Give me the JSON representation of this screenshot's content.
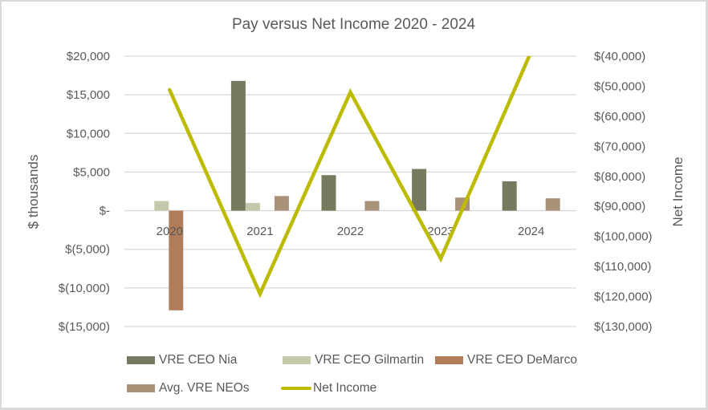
{
  "chart_data": {
    "type": "bar",
    "combo": "bar + line (secondary axis)",
    "title": "Pay versus Net Income 2020 - 2024",
    "xlabel": "",
    "ylabel": "$ thousands",
    "y2label": "Net Income",
    "categories": [
      "2020",
      "2021",
      "2022",
      "2023",
      "2024"
    ],
    "ylim": [
      -15000,
      20000
    ],
    "y2lim": [
      -130000,
      -40000
    ],
    "y_ticks": [
      "$20,000",
      "$15,000",
      "$10,000",
      "$5,000",
      "$-",
      "$(5,000)",
      "$(10,000)",
      "$(15,000)"
    ],
    "y2_ticks": [
      "$(40,000)",
      "$(50,000)",
      "$(60,000)",
      "$(70,000)",
      "$(80,000)",
      "$(90,000)",
      "$(100,000)",
      "$(110,000)",
      "$(120,000)",
      "$(130,000)"
    ],
    "grid": true,
    "legend_position": "bottom",
    "series": [
      {
        "name": "VRE CEO Nia",
        "type": "bar",
        "axis": "left",
        "color": "#777a5e",
        "values": [
          null,
          16800,
          4600,
          5400,
          3800
        ]
      },
      {
        "name": "VRE CEO Gilmartin",
        "type": "bar",
        "axis": "left",
        "color": "#c5c9ab",
        "values": [
          1250,
          1000,
          null,
          null,
          null
        ]
      },
      {
        "name": "VRE CEO DeMarco",
        "type": "bar",
        "axis": "left",
        "color": "#b07c5a",
        "values": [
          -12900,
          null,
          null,
          null,
          null
        ]
      },
      {
        "name": "Avg. VRE NEOs",
        "type": "bar",
        "axis": "left",
        "color": "#a99278",
        "values": [
          null,
          1900,
          1250,
          1700,
          1600
        ]
      },
      {
        "name": "Net Income",
        "type": "line",
        "axis": "right",
        "color": "#bcbb00",
        "values": [
          -51200,
          -119100,
          -52000,
          -107400,
          -38500
        ]
      }
    ]
  },
  "legend": {
    "items": [
      {
        "label": "VRE CEO Nia",
        "color": "#777a5e",
        "kind": "bar"
      },
      {
        "label": "VRE CEO Gilmartin",
        "color": "#c5c9ab",
        "kind": "bar"
      },
      {
        "label": "VRE CEO DeMarco",
        "color": "#b07c5a",
        "kind": "bar"
      },
      {
        "label": "Avg. VRE NEOs",
        "color": "#a99278",
        "kind": "bar"
      },
      {
        "label": "Net Income",
        "color": "#bcbb00",
        "kind": "line"
      }
    ]
  }
}
